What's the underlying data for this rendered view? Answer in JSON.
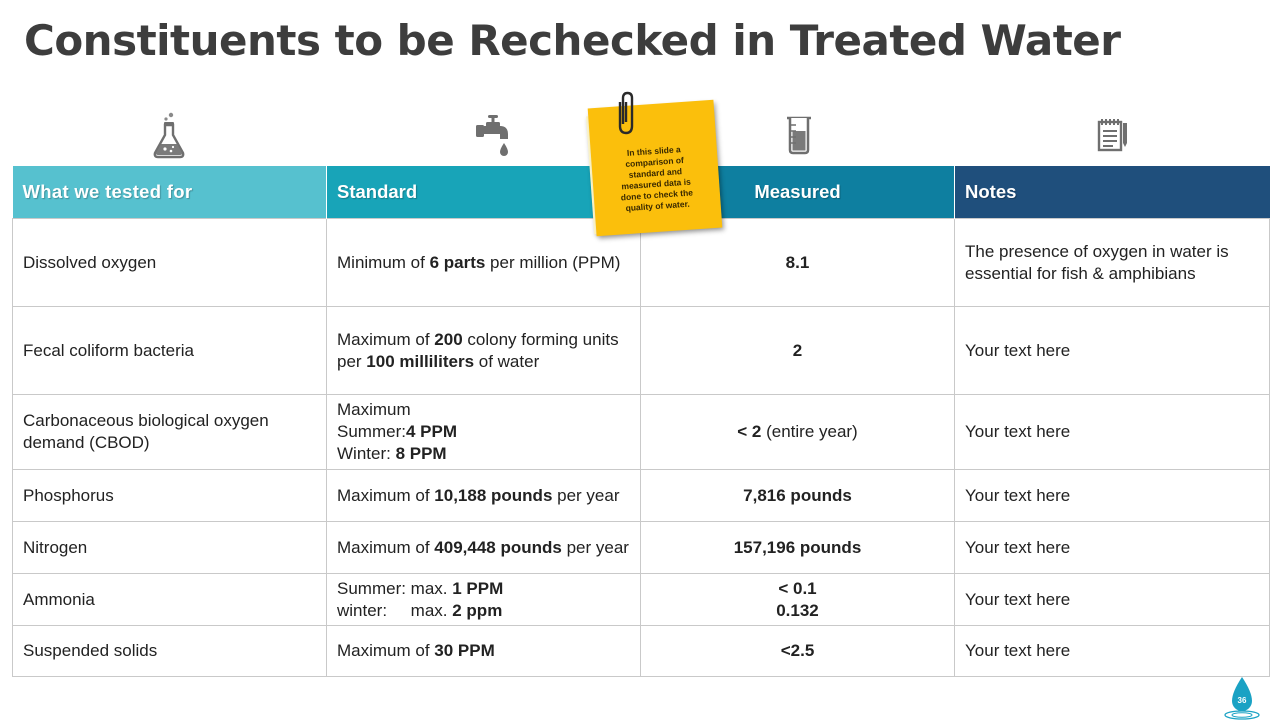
{
  "title": "Constituents to be Rechecked in Treated Water",
  "icons": [
    "flask-icon",
    "water-tap-icon",
    "beaker-icon",
    "notepad-icon"
  ],
  "header": {
    "col1": "What we tested for",
    "col2": "Standard",
    "col3": "Measured",
    "col4": "Notes"
  },
  "rows": [
    {
      "tested": "Dissolved oxygen",
      "std_a": "Minimum of ",
      "std_b": "6 parts",
      "std_c": " per million (PPM)",
      "measured": "8.1",
      "note": "The presence of oxygen in water is essential for fish & amphibians"
    },
    {
      "tested": "Fecal coliform bacteria",
      "std_a": "Maximum of ",
      "std_b": "200",
      "std_c": " colony forming units per ",
      "std_d": "100 milliliters",
      "std_e": " of water",
      "measured": "2",
      "note": "Your text here"
    },
    {
      "tested": "Carbonaceous biological oxygen demand (CBOD)",
      "std_line1": "Maximum",
      "std_line2a": "Summer:",
      "std_line2b": "4 PPM",
      "std_line3a": "Winter: ",
      "std_line3b": "8 PPM",
      "measured_a": "< 2",
      "measured_b": " (entire year)",
      "note": "Your text here"
    },
    {
      "tested": "Phosphorus",
      "std_a": "Maximum of ",
      "std_b": "10,188 pounds",
      "std_c": " per year",
      "measured": "7,816 pounds",
      "note": "Your text here"
    },
    {
      "tested": "Nitrogen",
      "std_a": "Maximum of ",
      "std_b": "409,448 pounds",
      "std_c": " per year",
      "measured": "157,196 pounds",
      "note": "Your text here"
    },
    {
      "tested": "Ammonia",
      "std_line1a": "Summer: max. ",
      "std_line1b": "1 PPM",
      "std_line2a": "winter:     max. ",
      "std_line2b": "2 ppm",
      "measured_line1": "< 0.1",
      "measured_line2": "0.132",
      "note": "Your text here"
    },
    {
      "tested": "Suspended solids",
      "std_a": "Maximum of ",
      "std_b": "30 PPM",
      "measured": "<2.5",
      "note": "Your text here"
    }
  ],
  "sticky_note": "In this slide a comparison of standard and measured data is done to check the quality of water.",
  "page_number": "36",
  "colors": {
    "header_col1": "#56c1cf",
    "header_col2": "#18a4b8",
    "header_col3": "#0e7fa0",
    "header_col4": "#1f4f7c",
    "sticky": "#fbbf0c",
    "badge": "#1aa2c4"
  }
}
